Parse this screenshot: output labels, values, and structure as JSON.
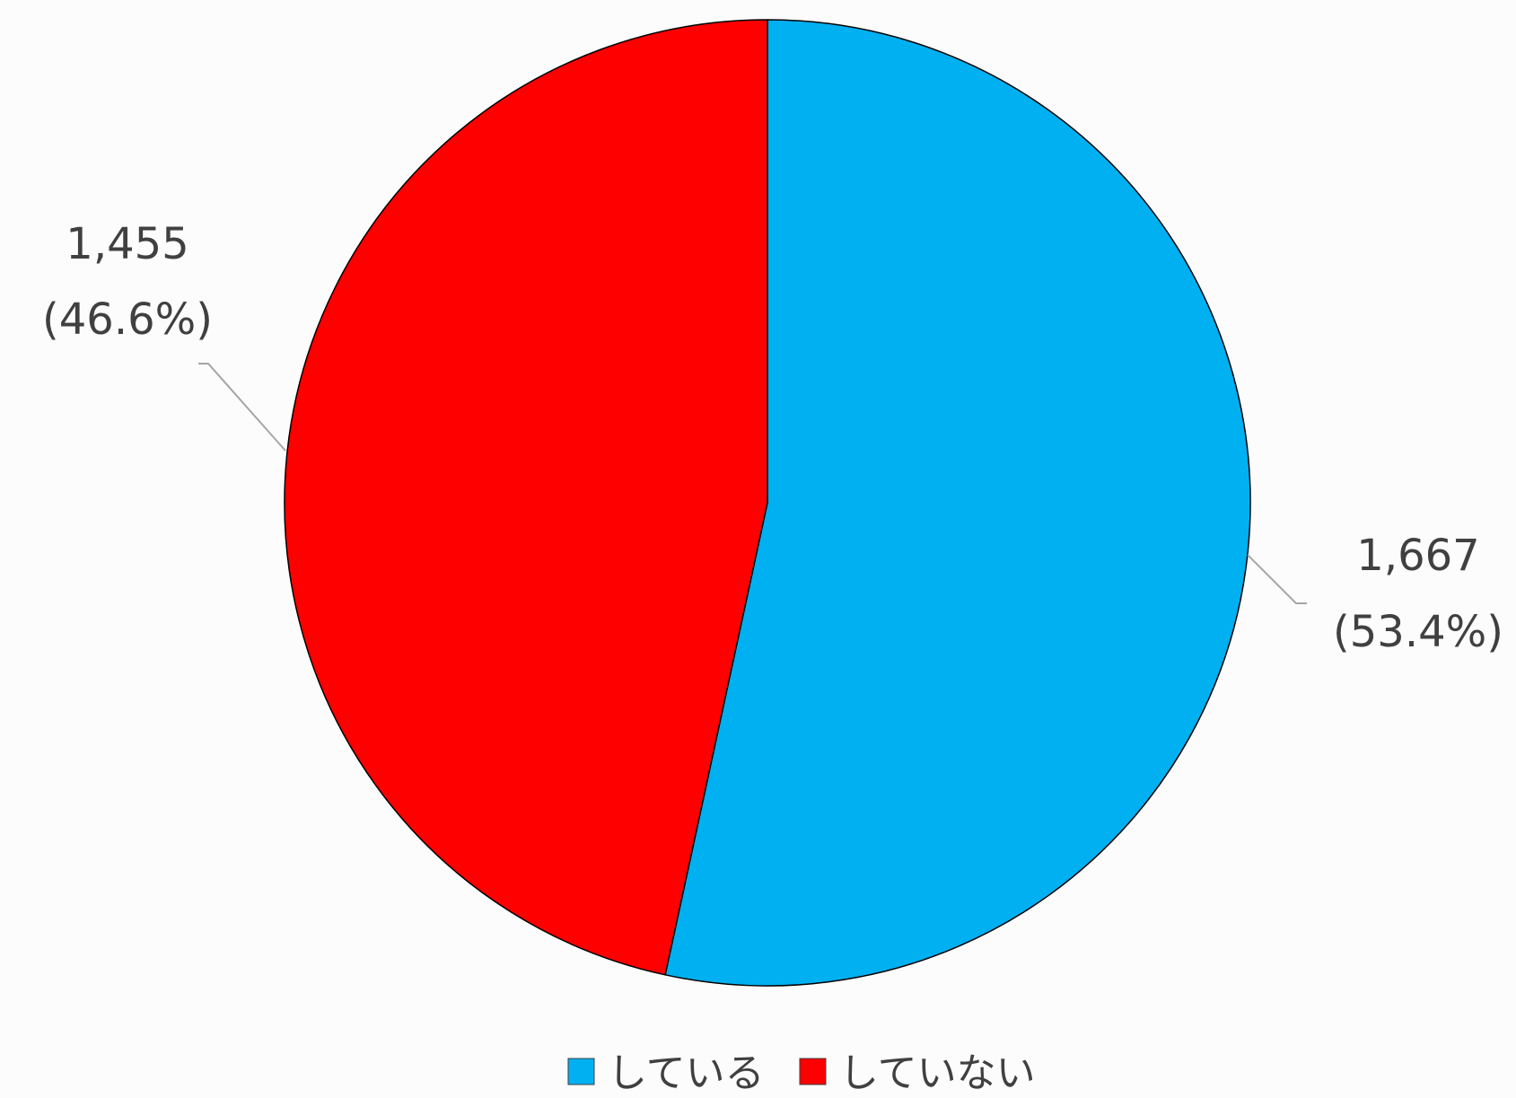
{
  "chart_data": {
    "type": "pie",
    "slices": [
      {
        "label": "している",
        "value": 1667,
        "value_text": "1,667",
        "percent_text": "(53.4%)",
        "color": "#00B0F0"
      },
      {
        "label": "していない",
        "value": 1455,
        "value_text": "1,455",
        "percent_text": "(46.6%)",
        "color": "#FF0000"
      }
    ],
    "start_angle_deg": 0,
    "direction": "clockwise",
    "legend_position": "bottom",
    "slice_border_color": "#000000",
    "leader_line_color": "#a6a6a6"
  }
}
